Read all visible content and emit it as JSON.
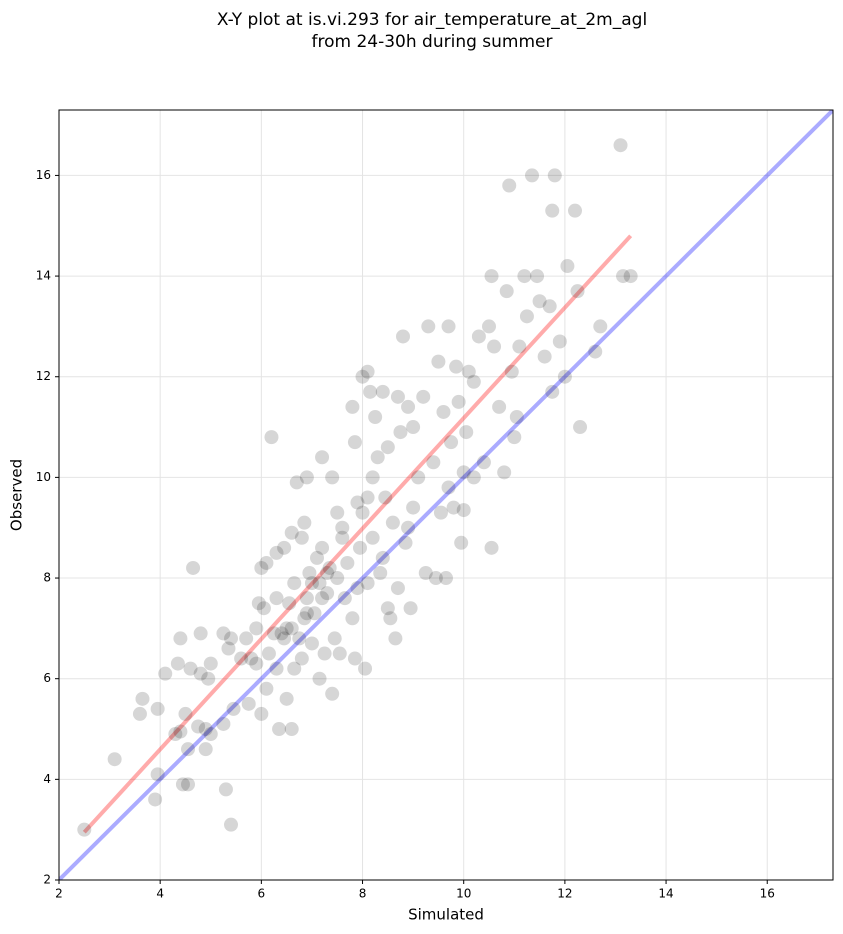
{
  "chart_data": {
    "type": "scatter",
    "title": "X-Y plot at is.vi.293 for air_temperature_at_2m_agl",
    "subtitle": "from 24-30h during summer",
    "xlabel": "Simulated",
    "ylabel": "Observed",
    "xlim": [
      2,
      17.3
    ],
    "ylim": [
      2,
      17.3
    ],
    "xticks": [
      2,
      4,
      6,
      8,
      10,
      12,
      14,
      16
    ],
    "yticks": [
      2,
      4,
      6,
      8,
      10,
      12,
      14,
      16
    ],
    "grid": true,
    "color": "#000000",
    "x": [
      2.5,
      3.1,
      3.6,
      3.65,
      3.9,
      3.95,
      3.95,
      4.1,
      4.3,
      4.35,
      4.4,
      4.4,
      4.45,
      4.5,
      4.55,
      4.55,
      4.6,
      4.65,
      4.75,
      4.8,
      4.8,
      4.9,
      4.9,
      4.95,
      5.0,
      5.0,
      5.25,
      5.25,
      5.3,
      5.35,
      5.4,
      5.4,
      5.45,
      5.7,
      5.75,
      5.8,
      5.9,
      5.9,
      5.95,
      6.0,
      6.0,
      6.05,
      6.1,
      6.1,
      6.15,
      6.2,
      6.25,
      6.3,
      6.3,
      6.35,
      6.45,
      6.45,
      6.5,
      6.5,
      6.55,
      6.6,
      6.6,
      6.65,
      6.65,
      6.7,
      6.75,
      6.8,
      6.8,
      6.85,
      6.85,
      6.9,
      6.9,
      6.95,
      7.0,
      7.05,
      7.1,
      7.15,
      7.15,
      7.2,
      7.2,
      7.25,
      7.3,
      7.35,
      7.4,
      7.4,
      7.45,
      7.5,
      7.5,
      7.55,
      7.6,
      7.65,
      7.7,
      7.8,
      7.8,
      7.85,
      7.85,
      7.9,
      7.95,
      8.0,
      8.0,
      8.05,
      8.1,
      8.1,
      8.15,
      8.2,
      8.2,
      8.25,
      8.3,
      8.35,
      8.4,
      8.45,
      8.5,
      8.5,
      8.55,
      8.6,
      8.65,
      8.7,
      8.7,
      8.75,
      8.8,
      8.85,
      8.9,
      8.95,
      9.0,
      9.0,
      9.1,
      9.2,
      9.25,
      9.3,
      9.4,
      9.45,
      9.5,
      9.55,
      9.6,
      9.65,
      9.7,
      9.75,
      9.8,
      9.85,
      9.9,
      9.95,
      10.0,
      10.0,
      10.05,
      10.1,
      10.2,
      10.3,
      10.4,
      10.5,
      10.55,
      10.55,
      10.6,
      10.7,
      10.8,
      10.85,
      10.9,
      10.95,
      11.0,
      11.05,
      11.1,
      11.2,
      11.25,
      11.35,
      11.45,
      11.5,
      11.6,
      11.7,
      11.75,
      11.8,
      11.9,
      12.0,
      12.05,
      12.2,
      12.25,
      12.3,
      12.6,
      12.7,
      13.1,
      13.15,
      13.3,
      11.75,
      9.7,
      10.2,
      8.9,
      7.2,
      6.6,
      6.4,
      7.0,
      7.6,
      8.1,
      8.4,
      7.9,
      7.3,
      6.9,
      6.3,
      5.6
    ],
    "values": [
      3.0,
      4.4,
      5.3,
      5.6,
      3.6,
      4.1,
      5.4,
      6.1,
      4.9,
      6.3,
      6.8,
      4.95,
      3.9,
      5.3,
      4.6,
      3.9,
      6.2,
      8.2,
      5.05,
      6.9,
      6.1,
      4.6,
      5.0,
      6.0,
      6.3,
      4.9,
      6.9,
      5.1,
      3.8,
      6.6,
      6.8,
      3.1,
      5.4,
      6.8,
      5.5,
      6.4,
      7.0,
      6.3,
      7.5,
      5.3,
      8.2,
      7.4,
      8.3,
      5.8,
      6.5,
      10.8,
      6.9,
      7.6,
      8.5,
      5.0,
      8.6,
      6.8,
      5.6,
      7.0,
      7.5,
      5.0,
      8.9,
      6.2,
      7.9,
      9.9,
      6.8,
      8.8,
      6.4,
      7.2,
      9.1,
      10.0,
      7.6,
      8.1,
      6.7,
      7.3,
      8.4,
      7.9,
      6.0,
      10.4,
      8.6,
      6.5,
      7.7,
      8.2,
      5.7,
      10.0,
      6.8,
      9.3,
      8.0,
      6.5,
      9.0,
      7.6,
      8.3,
      11.4,
      7.2,
      6.4,
      10.7,
      9.5,
      8.6,
      12.0,
      9.3,
      6.2,
      12.1,
      7.9,
      11.7,
      8.8,
      10.0,
      11.2,
      10.4,
      8.1,
      11.7,
      9.6,
      7.4,
      10.6,
      7.2,
      9.1,
      6.8,
      11.6,
      7.8,
      10.9,
      12.8,
      8.7,
      11.4,
      7.4,
      11.0,
      9.4,
      10.0,
      11.6,
      8.1,
      13.0,
      10.3,
      8.0,
      12.3,
      9.3,
      11.3,
      8.0,
      13.0,
      10.7,
      9.4,
      12.2,
      11.5,
      8.7,
      9.35,
      10.1,
      10.9,
      12.1,
      11.9,
      12.8,
      10.3,
      13.0,
      14.0,
      8.6,
      12.6,
      11.4,
      10.1,
      13.7,
      15.8,
      12.1,
      10.8,
      11.2,
      12.6,
      14.0,
      13.2,
      16.0,
      14.0,
      13.5,
      12.4,
      13.4,
      15.3,
      16.0,
      12.7,
      12.0,
      14.2,
      15.3,
      13.7,
      11.0,
      12.5,
      13.0,
      16.6,
      14.0,
      14.0,
      11.7,
      9.8,
      10.0,
      9.0,
      7.6,
      7.0,
      6.9,
      7.9,
      8.8,
      9.6,
      8.4,
      7.8,
      8.1,
      7.3,
      6.2,
      6.4
    ],
    "lines": [
      {
        "color": "#ff0000",
        "x": [
          2.5,
          13.3
        ],
        "values": [
          2.95,
          14.8
        ]
      },
      {
        "color": "#0000ff",
        "x": [
          2,
          17.3
        ],
        "values": [
          2,
          17.3
        ]
      }
    ]
  }
}
